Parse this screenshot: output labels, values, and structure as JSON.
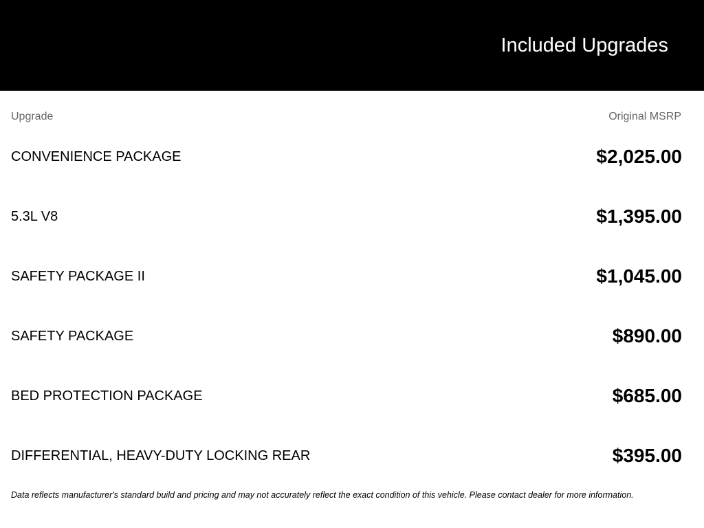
{
  "header": {
    "title": "Included Upgrades"
  },
  "columns": {
    "upgrade": "Upgrade",
    "msrp": "Original MSRP"
  },
  "upgrades": [
    {
      "name": "CONVENIENCE PACKAGE",
      "price": "$2,025.00"
    },
    {
      "name": "5.3L V8",
      "price": "$1,395.00"
    },
    {
      "name": "SAFETY PACKAGE II",
      "price": "$1,045.00"
    },
    {
      "name": "SAFETY PACKAGE",
      "price": "$890.00"
    },
    {
      "name": "BED PROTECTION PACKAGE",
      "price": "$685.00"
    },
    {
      "name": "DIFFERENTIAL, HEAVY-DUTY LOCKING REAR",
      "price": "$395.00"
    }
  ],
  "footer": {
    "disclaimer": "Data reflects manufacturer's standard build and pricing and may not accurately reflect the exact condition of this vehicle. Please contact dealer for more information."
  }
}
